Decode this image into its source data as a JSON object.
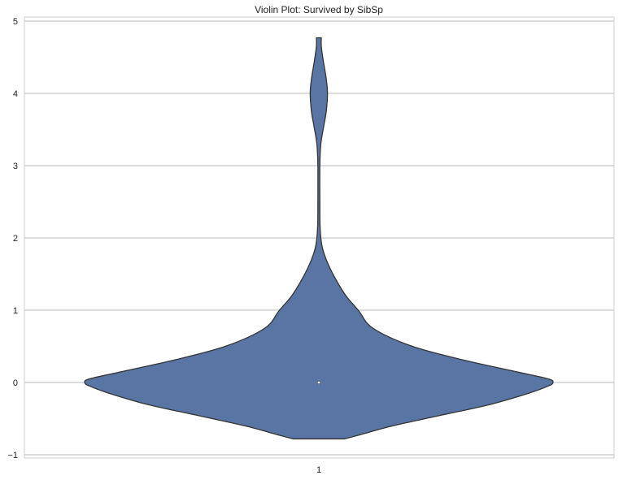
{
  "chart_data": {
    "type": "violin",
    "title": "Violin Plot: Survived by SibSp",
    "xlabel": "",
    "ylabel": "",
    "categories": [
      "1"
    ],
    "ylim": [
      -1.0,
      5.05
    ],
    "yticks": [
      -1,
      0,
      1,
      2,
      3,
      4,
      5
    ],
    "ytick_labels": [
      "−1",
      "0",
      "1",
      "2",
      "3",
      "4",
      "5"
    ],
    "grid": true,
    "violins": [
      {
        "category": "1",
        "median": 0,
        "fill": "#5875a4",
        "edge": "#333333",
        "density_profile": [
          {
            "y": -0.78,
            "half_width": 0.105
          },
          {
            "y": -0.72,
            "half_width": 0.17
          },
          {
            "y": -0.6,
            "half_width": 0.3
          },
          {
            "y": -0.45,
            "half_width": 0.5
          },
          {
            "y": -0.3,
            "half_width": 0.7
          },
          {
            "y": -0.15,
            "half_width": 0.85
          },
          {
            "y": -0.05,
            "half_width": 0.93
          },
          {
            "y": 0.0,
            "half_width": 0.95
          },
          {
            "y": 0.05,
            "half_width": 0.93
          },
          {
            "y": 0.15,
            "half_width": 0.8
          },
          {
            "y": 0.3,
            "half_width": 0.6
          },
          {
            "y": 0.5,
            "half_width": 0.38
          },
          {
            "y": 0.75,
            "half_width": 0.22
          },
          {
            "y": 1.0,
            "half_width": 0.16
          },
          {
            "y": 1.2,
            "half_width": 0.11
          },
          {
            "y": 1.45,
            "half_width": 0.065
          },
          {
            "y": 1.7,
            "half_width": 0.03
          },
          {
            "y": 1.9,
            "half_width": 0.012
          },
          {
            "y": 2.15,
            "half_width": 0.005
          },
          {
            "y": 2.5,
            "half_width": 0.004
          },
          {
            "y": 3.0,
            "half_width": 0.004
          },
          {
            "y": 3.3,
            "half_width": 0.008
          },
          {
            "y": 3.55,
            "half_width": 0.02
          },
          {
            "y": 3.75,
            "half_width": 0.03
          },
          {
            "y": 4.0,
            "half_width": 0.035
          },
          {
            "y": 4.2,
            "half_width": 0.03
          },
          {
            "y": 4.45,
            "half_width": 0.018
          },
          {
            "y": 4.65,
            "half_width": 0.01
          },
          {
            "y": 4.77,
            "half_width": 0.01
          }
        ]
      }
    ]
  }
}
